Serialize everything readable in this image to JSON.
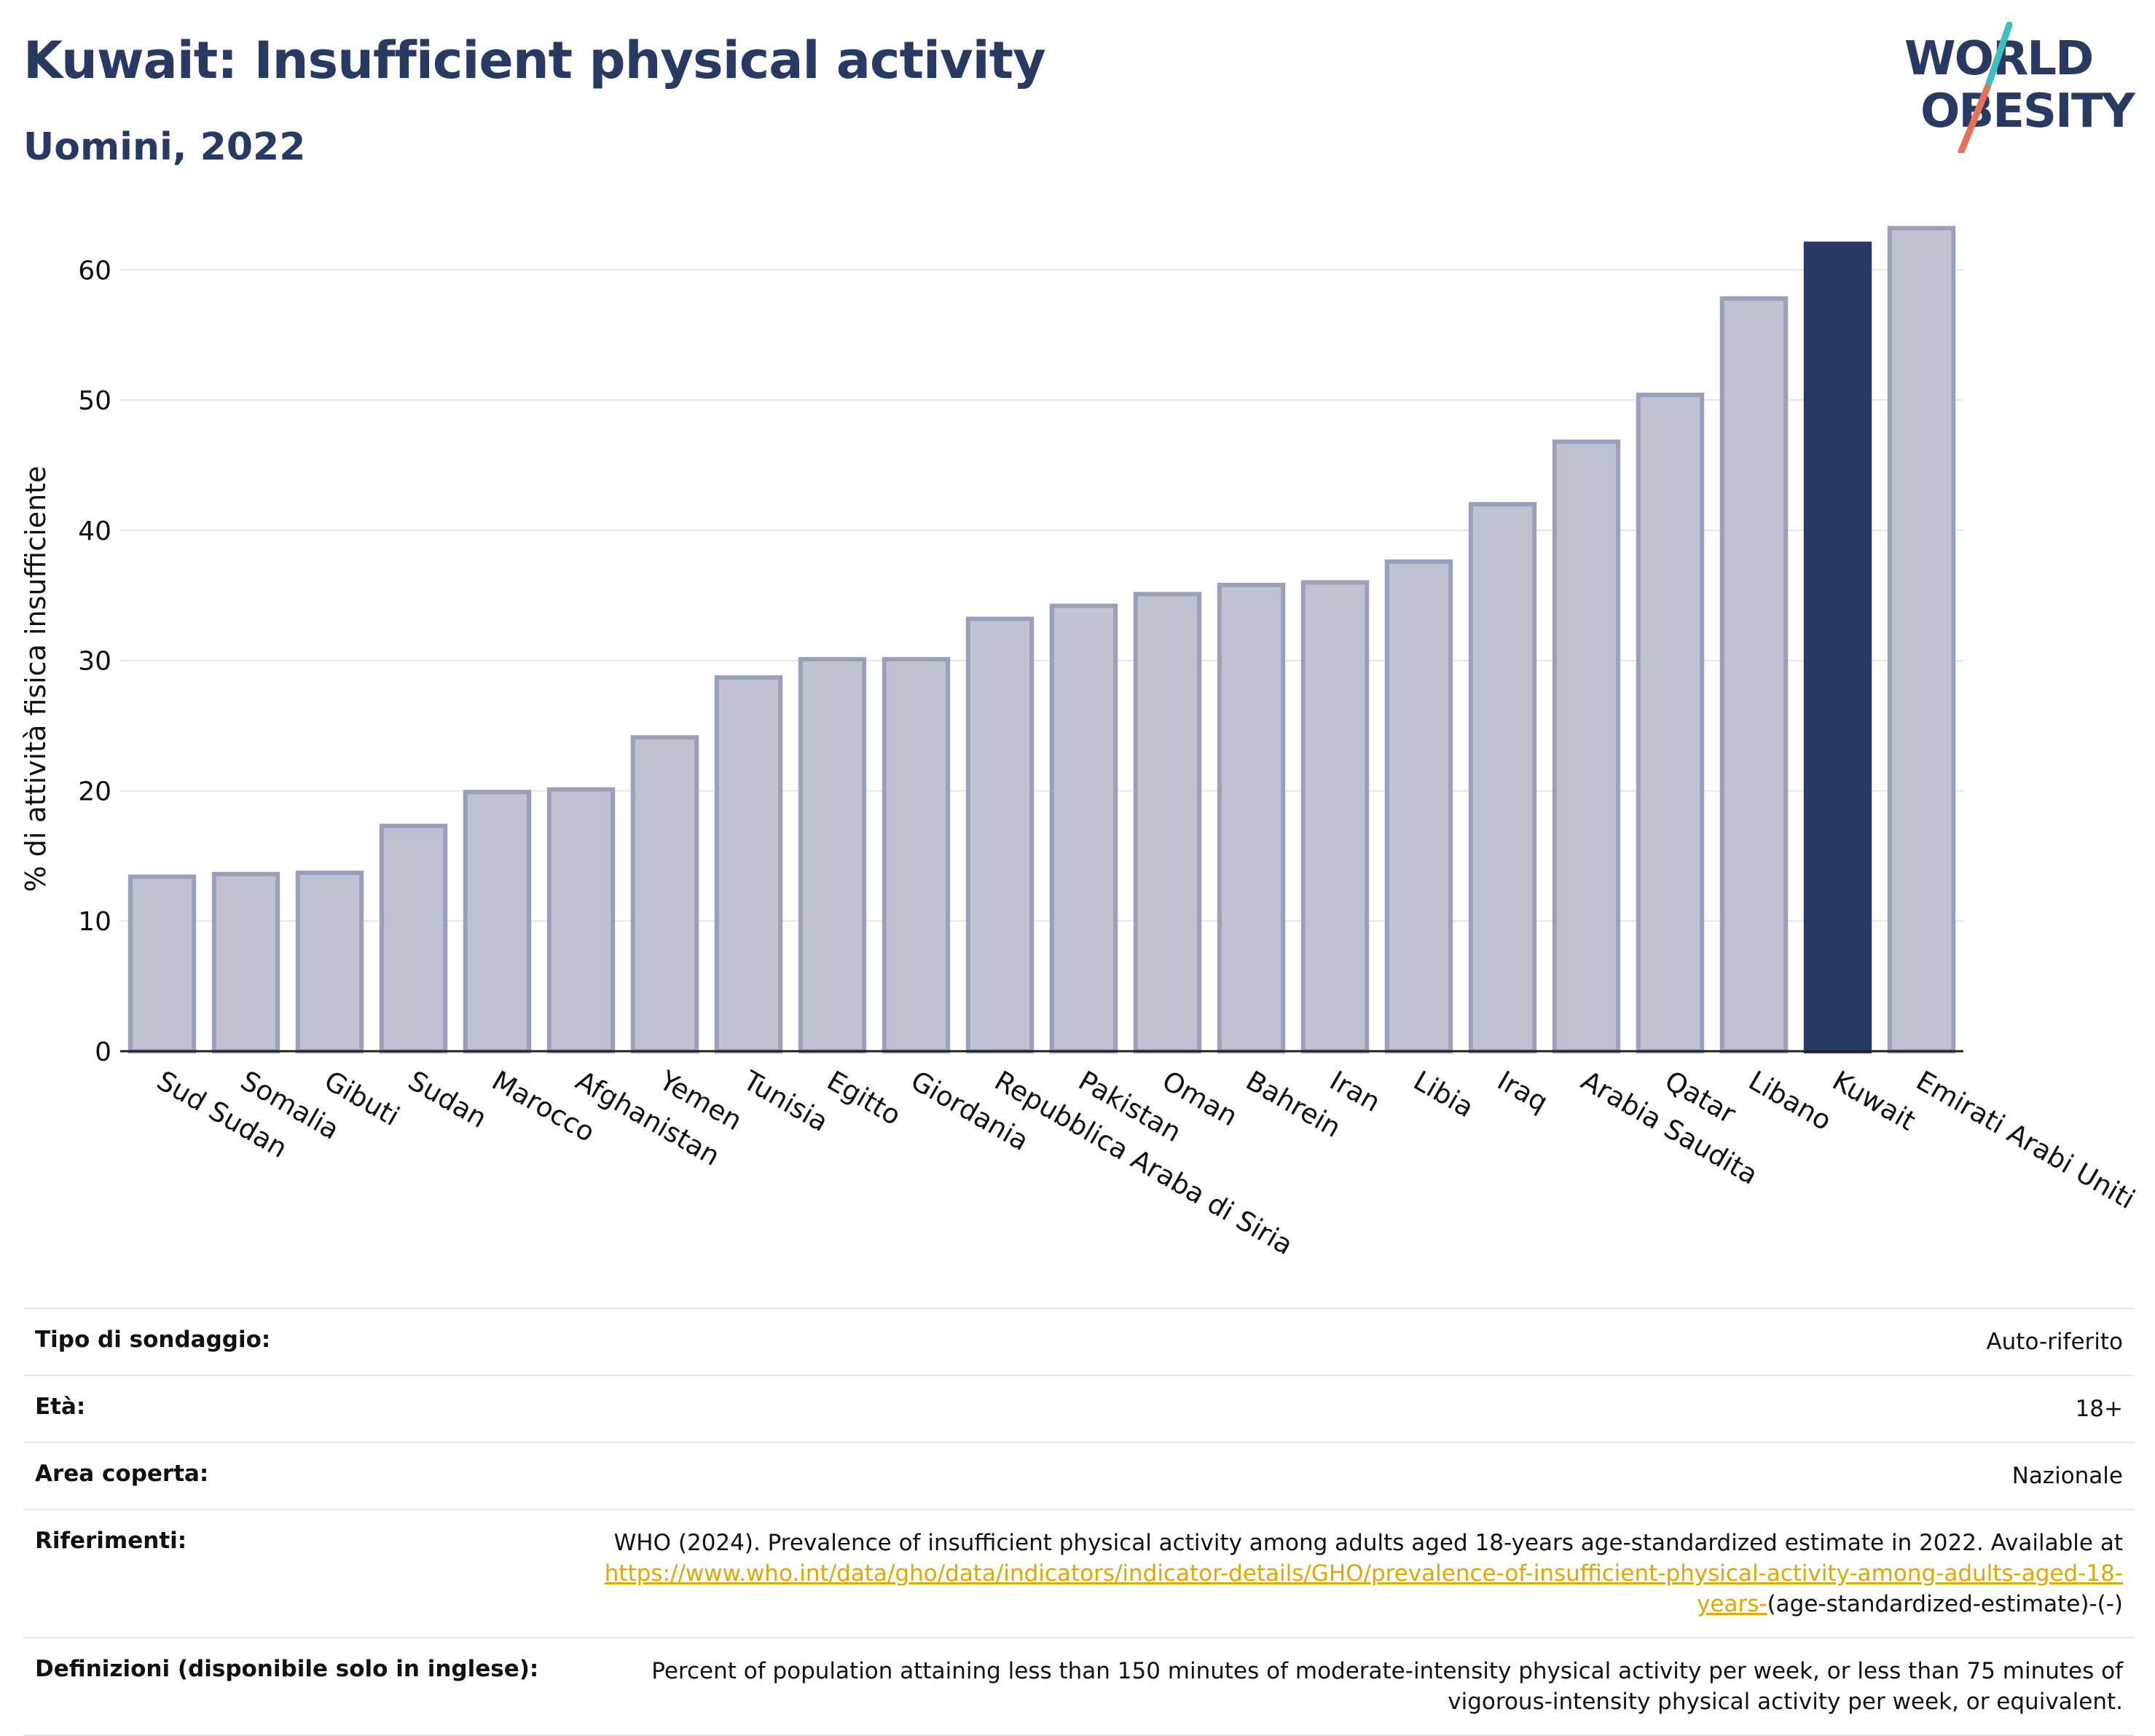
{
  "header": {
    "title": "Kuwait: Insufficient physical activity",
    "subtitle": "Uomini, 2022"
  },
  "logo": {
    "line1": "WORLD",
    "line2": "OBESITY",
    "text_color": "#283a64",
    "slash_colors": [
      "#3bbfbf",
      "#e8705a"
    ]
  },
  "chart_data": {
    "type": "bar",
    "ylabel": "% di attività fisica insufficiente",
    "xlabel": "",
    "ylim": [
      0,
      65
    ],
    "yticks": [
      0,
      10,
      20,
      30,
      40,
      50,
      60
    ],
    "grid": true,
    "highlight": "Kuwait",
    "bar_color": "#bfc2d0",
    "bar_border_color": "#9a9fbb",
    "highlight_color": "#283a64",
    "categories": [
      "Sud Sudan",
      "Somalia",
      "Gibuti",
      "Sudan",
      "Marocco",
      "Afghanistan",
      "Yemen",
      "Tunisia",
      "Egitto",
      "Giordania",
      "Repubblica Araba di Siria",
      "Pakistan",
      "Oman",
      "Bahrein",
      "Iran",
      "Libia",
      "Iraq",
      "Arabia Saudita",
      "Qatar",
      "Libano",
      "Kuwait",
      "Emirati Arabi Uniti"
    ],
    "values": [
      13.4,
      13.6,
      13.7,
      17.3,
      19.9,
      20.1,
      24.1,
      28.7,
      30.1,
      30.1,
      33.2,
      34.2,
      35.1,
      35.8,
      36.0,
      37.6,
      42.0,
      46.8,
      50.4,
      57.8,
      62.0,
      63.2
    ]
  },
  "info": {
    "survey_label": "Tipo di sondaggio:",
    "survey_value": "Auto-riferito",
    "age_label": "Età:",
    "age_value": "18+",
    "area_label": "Area coperta:",
    "area_value": "Nazionale",
    "references_label": "Riferimenti:",
    "references_text": "WHO (2024). Prevalence of insufficient physical activity among adults aged 18-years age-standardized estimate in 2022. Available at",
    "references_link": "https://www.who.int/data/gho/data/indicators/indicator-details/GHO/prevalence-of-insufficient-physical-activity-among-adults-aged-18-years-",
    "references_suffix": "(age-standardized-estimate)-(-)",
    "definitions_label": "Definizioni (disponibile solo in inglese):",
    "definitions_value": "Percent of population attaining less than 150 minutes of moderate-intensity physical activity per week, or less than 75 minutes of vigorous-intensity physical activity per week, or equivalent."
  }
}
